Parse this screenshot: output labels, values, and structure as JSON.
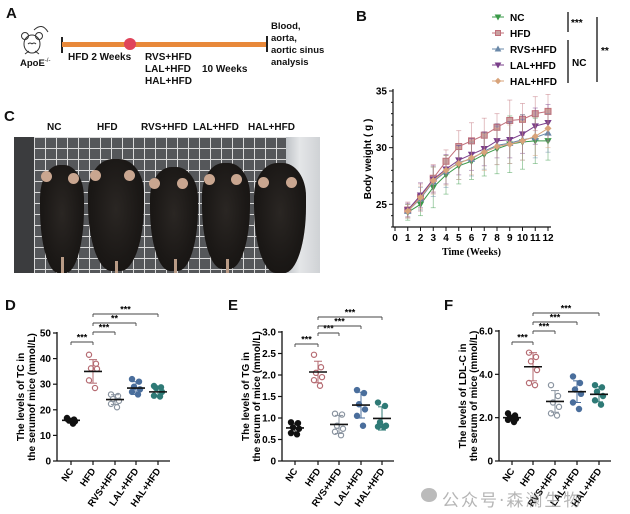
{
  "panels": {
    "A": {
      "letter": "A",
      "mouse_label": "ApoE",
      "mouse_sup": "-/-",
      "phase1_label": "HFD 2 Weeks",
      "groups": [
        "RVS+HFD",
        "LAL+HFD",
        "HAL+HFD"
      ],
      "phase2_label": "10 Weeks",
      "endpoint_lines": [
        "Blood,",
        "aorta,",
        "aortic sinus",
        "analysis"
      ],
      "timeline_color": "#e8883a",
      "marker_color": "#e0445a"
    },
    "C": {
      "letter": "C",
      "group_labels": [
        "NC",
        "HFD",
        "RVS+HFD",
        "LAL+HFD",
        "HAL+HFD"
      ]
    },
    "D": {
      "letter": "D"
    },
    "E": {
      "letter": "E"
    },
    "F": {
      "letter": "F"
    }
  },
  "watermark": "公众号·森澜生物",
  "chart_data": [
    {
      "id": "B",
      "letter": "B",
      "type": "line",
      "title": "",
      "xlabel": "Time (Weeks)",
      "ylabel": "Body weight ( g )",
      "x": [
        1,
        2,
        3,
        4,
        5,
        6,
        7,
        8,
        9,
        10,
        11,
        12
      ],
      "xticks": [
        0,
        1,
        2,
        3,
        4,
        5,
        6,
        7,
        8,
        9,
        10,
        11,
        12
      ],
      "xlim": [
        0,
        12
      ],
      "ylim": [
        23,
        35
      ],
      "yticks": [
        25,
        30,
        35
      ],
      "grid": false,
      "legend_position": "top-right",
      "series": [
        {
          "name": "NC",
          "color": "#3a9a48",
          "marker": "triangle-down",
          "values": [
            24.3,
            25.0,
            26.5,
            27.6,
            28.4,
            28.8,
            29.4,
            29.9,
            30.3,
            30.5,
            30.6,
            30.6
          ],
          "sd": [
            0.7,
            1.0,
            1.8,
            1.7,
            1.6,
            1.6,
            1.9,
            2.2,
            2.5,
            2.4,
            2.0,
            1.7
          ]
        },
        {
          "name": "HFD",
          "color": "#c0707a",
          "marker": "square",
          "values": [
            24.5,
            25.6,
            27.3,
            28.8,
            30.1,
            30.6,
            31.1,
            31.8,
            32.4,
            32.5,
            33.0,
            33.2
          ],
          "sd": [
            0.7,
            1.2,
            1.2,
            1.0,
            1.4,
            1.6,
            1.5,
            1.2,
            1.8,
            1.4,
            1.5,
            1.5
          ]
        },
        {
          "name": "RVS+HFD",
          "color": "#6a88a8",
          "marker": "triangle-up",
          "values": [
            24.4,
            25.5,
            27.0,
            27.9,
            28.7,
            29.0,
            29.7,
            30.2,
            30.4,
            30.7,
            30.9,
            31.3
          ],
          "sd": [
            0.6,
            1.0,
            1.3,
            1.4,
            1.5,
            1.5,
            1.6,
            1.7,
            1.8,
            1.8,
            1.8,
            1.7
          ]
        },
        {
          "name": "LAL+HFD",
          "color": "#7a3f8a",
          "marker": "triangle-down",
          "values": [
            24.5,
            25.8,
            27.2,
            28.1,
            28.9,
            29.4,
            29.9,
            30.6,
            30.7,
            31.2,
            31.9,
            32.2
          ],
          "sd": [
            0.6,
            1.1,
            1.2,
            1.3,
            1.3,
            1.4,
            1.5,
            1.5,
            1.6,
            1.7,
            1.6,
            1.6
          ]
        },
        {
          "name": "HAL+HFD",
          "color": "#d8a37a",
          "marker": "diamond",
          "values": [
            24.4,
            25.6,
            27.1,
            28.0,
            28.6,
            29.1,
            29.6,
            30.1,
            30.3,
            30.6,
            31.0,
            31.7
          ],
          "sd": [
            0.6,
            1.0,
            1.2,
            1.3,
            1.4,
            1.5,
            1.6,
            1.6,
            1.7,
            1.7,
            1.7,
            1.7
          ]
        }
      ],
      "significance": [
        {
          "groups": [
            "NC",
            "HFD"
          ],
          "label": "***"
        },
        {
          "groups": [
            "RVS+HFD",
            "LAL+HFD",
            "HAL+HFD"
          ],
          "label": "NC"
        },
        {
          "groups": [
            "NC",
            "HAL+HFD"
          ],
          "label": "**"
        }
      ]
    },
    {
      "id": "D",
      "type": "scatter",
      "title": "",
      "ylabel_lines": [
        "The levels of TC in",
        "the serumof mice  (mmol/L)"
      ],
      "categories": [
        "NC",
        "HFD",
        "RVS+HFD",
        "LAL+HFD",
        "HAL+HFD"
      ],
      "ylim": [
        0,
        50
      ],
      "yticks": [
        0,
        10,
        20,
        30,
        40,
        50
      ],
      "ytick_labels": [
        "0",
        "10",
        "20",
        "30",
        "40",
        "50"
      ],
      "grid": false,
      "series": [
        {
          "name": "NC",
          "color": "#111111",
          "filled": true,
          "points": [
            16.5,
            16.2,
            15.8,
            15.5,
            16.8,
            14.6
          ],
          "mean": 15.9,
          "sd": 0.8
        },
        {
          "name": "HFD",
          "color": "#b56b72",
          "filled": false,
          "points": [
            41.5,
            38.0,
            36.2,
            36.0,
            31.5,
            28.5
          ],
          "mean": 35.0,
          "sd": 4.6
        },
        {
          "name": "RVS+HFD",
          "color": "#8a94a0",
          "filled": false,
          "points": [
            26.0,
            25.4,
            24.2,
            23.5,
            22.3,
            21.0
          ],
          "mean": 24.0,
          "sd": 1.9
        },
        {
          "name": "LAL+HFD",
          "color": "#4a6e9c",
          "filled": true,
          "points": [
            32.0,
            31.0,
            29.0,
            28.0,
            27.0,
            26.0
          ],
          "mean": 28.5,
          "sd": 2.5
        },
        {
          "name": "HAL+HFD",
          "color": "#2f7a76",
          "filled": true,
          "points": [
            29.3,
            28.8,
            28.5,
            27.0,
            25.5,
            25.2
          ],
          "mean": 27.0,
          "sd": 1.8
        }
      ],
      "significance": [
        {
          "from": "NC",
          "to": "HFD",
          "label": "***"
        },
        {
          "from": "HFD",
          "to": "RVS+HFD",
          "label": "***"
        },
        {
          "from": "HFD",
          "to": "LAL+HFD",
          "label": "**"
        },
        {
          "from": "HFD",
          "to": "HAL+HFD",
          "label": "***"
        }
      ]
    },
    {
      "id": "E",
      "type": "scatter",
      "title": "",
      "ylabel_lines": [
        "The levels of TG in",
        "the serum of mice  (mmol/L)"
      ],
      "categories": [
        "NC",
        "HFD",
        "RVS+HFD",
        "LAL+HFD",
        "HAL+HFD"
      ],
      "ylim": [
        0,
        3.0
      ],
      "yticks": [
        0,
        0.5,
        1.0,
        1.5,
        2.0,
        2.5,
        3.0
      ],
      "ytick_labels": [
        "0",
        "0.5",
        "1.0",
        "1.5",
        "2.0",
        "2.5",
        "3.0"
      ],
      "grid": false,
      "series": [
        {
          "name": "NC",
          "color": "#111111",
          "filled": true,
          "points": [
            0.9,
            0.88,
            0.78,
            0.75,
            0.65,
            0.62
          ],
          "mean": 0.77,
          "sd": 0.11
        },
        {
          "name": "HFD",
          "color": "#b56b72",
          "filled": false,
          "points": [
            2.47,
            2.18,
            2.05,
            1.95,
            1.88,
            1.75
          ],
          "mean": 2.07,
          "sd": 0.25
        },
        {
          "name": "RVS+HFD",
          "color": "#8a94a0",
          "filled": false,
          "points": [
            1.1,
            1.08,
            0.82,
            0.75,
            0.68,
            0.6
          ],
          "mean": 0.85,
          "sd": 0.21
        },
        {
          "name": "LAL+HFD",
          "color": "#4a6e9c",
          "filled": true,
          "points": [
            1.65,
            1.58,
            1.32,
            1.2,
            1.05,
            0.82
          ],
          "mean": 1.3,
          "sd": 0.3
        },
        {
          "name": "HAL+HFD",
          "color": "#2f7a76",
          "filled": true,
          "points": [
            1.36,
            1.28,
            0.9,
            0.82,
            0.8,
            0.8
          ],
          "mean": 0.99,
          "sd": 0.27
        }
      ],
      "significance": [
        {
          "from": "NC",
          "to": "HFD",
          "label": "***"
        },
        {
          "from": "HFD",
          "to": "RVS+HFD",
          "label": "***"
        },
        {
          "from": "HFD",
          "to": "LAL+HFD",
          "label": "***"
        },
        {
          "from": "HFD",
          "to": "HAL+HFD",
          "label": "***"
        }
      ]
    },
    {
      "id": "F",
      "type": "scatter",
      "title": "",
      "ylabel_lines": [
        "The levels of LDL-C in",
        "the serum of mice  (mmol/L)"
      ],
      "categories": [
        "NC",
        "HFD",
        "RVS+HFD",
        "LAL+HFD",
        "HAL+HFD"
      ],
      "ylim": [
        0,
        6.0
      ],
      "yticks": [
        0,
        2.0,
        4.0,
        6.0
      ],
      "ytick_labels": [
        "0",
        "2.0",
        "4.0",
        "6.0"
      ],
      "grid": false,
      "series": [
        {
          "name": "NC",
          "color": "#111111",
          "filled": true,
          "points": [
            2.2,
            2.1,
            2.0,
            1.95,
            1.9,
            1.8
          ],
          "mean": 2.0,
          "sd": 0.12
        },
        {
          "name": "HFD",
          "color": "#b56b72",
          "filled": false,
          "points": [
            5.0,
            4.8,
            4.6,
            4.2,
            3.6,
            3.5
          ],
          "mean": 4.35,
          "sd": 0.65
        },
        {
          "name": "RVS+HFD",
          "color": "#8a94a0",
          "filled": false,
          "points": [
            3.5,
            3.0,
            2.7,
            2.5,
            2.2,
            2.1
          ],
          "mean": 2.75,
          "sd": 0.5
        },
        {
          "name": "LAL+HFD",
          "color": "#4a6e9c",
          "filled": true,
          "points": [
            3.9,
            3.6,
            3.3,
            3.1,
            2.7,
            2.4
          ],
          "mean": 3.2,
          "sd": 0.5
        },
        {
          "name": "HAL+HFD",
          "color": "#2f7a76",
          "filled": true,
          "points": [
            3.5,
            3.4,
            3.2,
            3.0,
            2.8,
            2.6
          ],
          "mean": 3.08,
          "sd": 0.35
        }
      ],
      "significance": [
        {
          "from": "NC",
          "to": "HFD",
          "label": "***"
        },
        {
          "from": "HFD",
          "to": "RVS+HFD",
          "label": "***"
        },
        {
          "from": "HFD",
          "to": "LAL+HFD",
          "label": "***"
        },
        {
          "from": "HFD",
          "to": "HAL+HFD",
          "label": "***"
        }
      ]
    }
  ]
}
